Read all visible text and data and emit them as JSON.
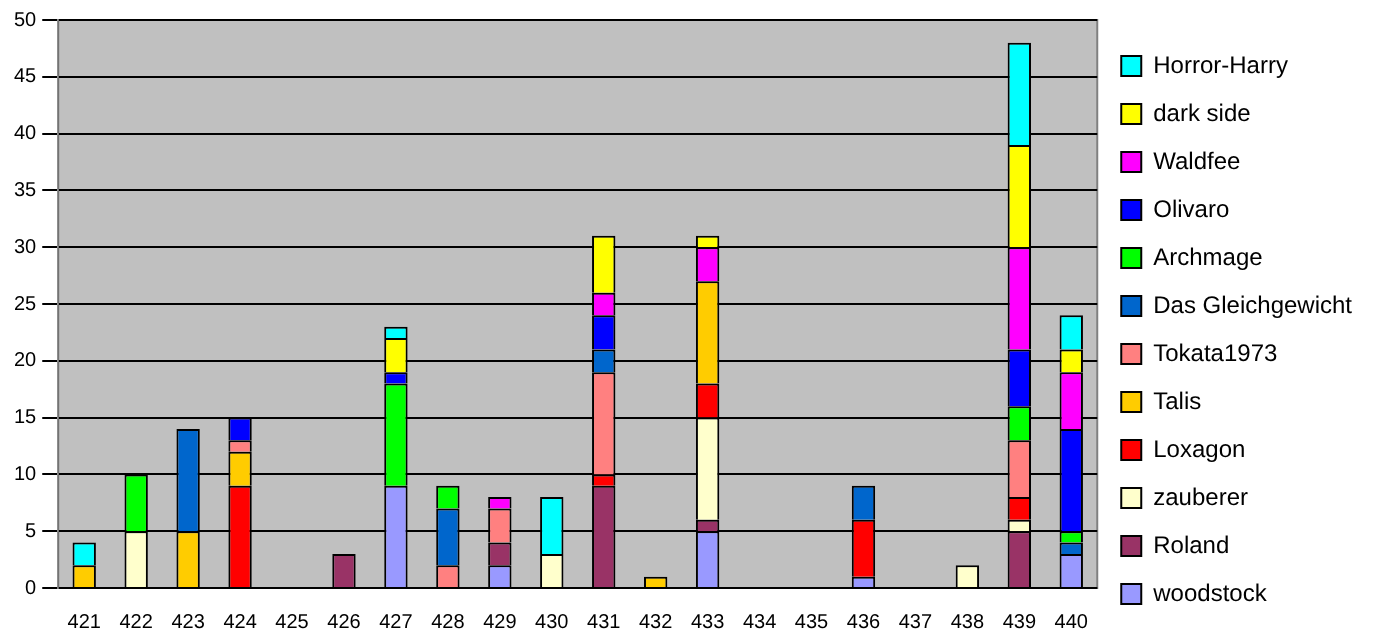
{
  "chart_data": {
    "type": "bar",
    "stacked": true,
    "categories": [
      "421",
      "422",
      "423",
      "424",
      "425",
      "426",
      "427",
      "428",
      "429",
      "430",
      "431",
      "432",
      "433",
      "434",
      "435",
      "436",
      "437",
      "438",
      "439",
      "440"
    ],
    "series": [
      {
        "name": "woodstock",
        "color": "#9999ff",
        "values": [
          0,
          0,
          0,
          0,
          0,
          0,
          9,
          0,
          2,
          0,
          0,
          0,
          5,
          0,
          0,
          1,
          0,
          0,
          0,
          3
        ]
      },
      {
        "name": "Roland",
        "color": "#993366",
        "values": [
          0,
          0,
          0,
          0,
          0,
          3,
          0,
          0,
          2,
          0,
          9,
          0,
          1,
          0,
          0,
          0,
          0,
          0,
          5,
          0
        ]
      },
      {
        "name": "zauberer",
        "color": "#ffffcc",
        "values": [
          0,
          5,
          0,
          0,
          0,
          0,
          0,
          0,
          0,
          3,
          0,
          0,
          9,
          0,
          0,
          0,
          0,
          2,
          1,
          0
        ]
      },
      {
        "name": "Loxagon",
        "color": "#ff0000",
        "values": [
          0,
          0,
          0,
          9,
          0,
          0,
          0,
          0,
          0,
          0,
          1,
          0,
          3,
          0,
          0,
          5,
          0,
          0,
          2,
          0
        ]
      },
      {
        "name": "Talis",
        "color": "#ffcc00",
        "values": [
          2,
          0,
          5,
          3,
          0,
          0,
          0,
          0,
          0,
          0,
          0,
          1,
          9,
          0,
          0,
          0,
          0,
          0,
          0,
          0
        ]
      },
      {
        "name": "Tokata1973",
        "color": "#ff8080",
        "values": [
          0,
          0,
          0,
          1,
          0,
          0,
          0,
          2,
          3,
          0,
          9,
          0,
          0,
          0,
          0,
          0,
          0,
          0,
          5,
          0
        ]
      },
      {
        "name": "Das Gleichgewicht",
        "color": "#0066cc",
        "values": [
          0,
          0,
          9,
          0,
          0,
          0,
          0,
          5,
          0,
          0,
          2,
          0,
          0,
          0,
          0,
          3,
          0,
          0,
          0,
          1
        ]
      },
      {
        "name": "Archmage",
        "color": "#00ff00",
        "values": [
          0,
          5,
          0,
          0,
          0,
          0,
          9,
          2,
          0,
          0,
          0,
          0,
          0,
          0,
          0,
          0,
          0,
          0,
          3,
          1
        ]
      },
      {
        "name": "Olivaro",
        "color": "#0000ff",
        "values": [
          0,
          0,
          0,
          2,
          0,
          0,
          1,
          0,
          0,
          0,
          3,
          0,
          0,
          0,
          0,
          0,
          0,
          0,
          5,
          9
        ]
      },
      {
        "name": "Waldfee",
        "color": "#ff00ff",
        "values": [
          0,
          0,
          0,
          0,
          0,
          0,
          0,
          0,
          1,
          0,
          2,
          0,
          3,
          0,
          0,
          0,
          0,
          0,
          9,
          5
        ]
      },
      {
        "name": "dark side",
        "color": "#ffff00",
        "values": [
          0,
          0,
          0,
          0,
          0,
          0,
          3,
          0,
          0,
          0,
          5,
          0,
          1,
          0,
          0,
          0,
          0,
          0,
          9,
          2
        ]
      },
      {
        "name": "Horror-Harry",
        "color": "#00ffff",
        "values": [
          2,
          0,
          0,
          0,
          0,
          0,
          1,
          0,
          0,
          5,
          0,
          0,
          0,
          0,
          0,
          0,
          0,
          0,
          9,
          3
        ]
      }
    ],
    "ylim": [
      0,
      50
    ],
    "yticks": [
      0,
      5,
      10,
      15,
      20,
      25,
      30,
      35,
      40,
      45,
      50
    ],
    "grid": "y",
    "legend": "right"
  }
}
